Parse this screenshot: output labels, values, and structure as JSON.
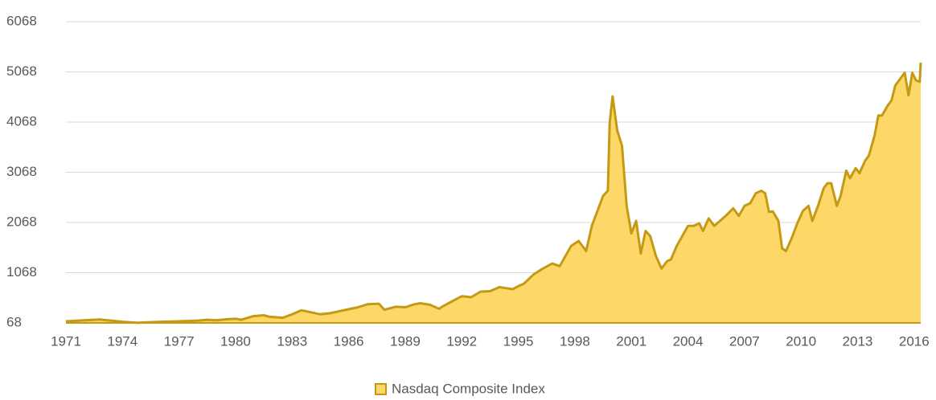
{
  "chart_data": {
    "type": "area",
    "x": [
      1971.0,
      1972.0,
      1972.8,
      1973.5,
      1974.0,
      1974.8,
      1975.0,
      1976.0,
      1977.0,
      1978.0,
      1978.5,
      1979.0,
      1979.5,
      1980.0,
      1980.3,
      1980.9,
      1981.5,
      1981.8,
      1982.5,
      1983.0,
      1983.5,
      1984.0,
      1984.5,
      1985.0,
      1985.5,
      1986.0,
      1986.5,
      1987.0,
      1987.6,
      1987.9,
      1988.5,
      1989.0,
      1989.5,
      1989.8,
      1990.3,
      1990.8,
      1991.0,
      1991.5,
      1992.0,
      1992.5,
      1993.0,
      1993.5,
      1994.0,
      1994.7,
      1995.0,
      1995.3,
      1995.8,
      1996.3,
      1996.8,
      1997.2,
      1997.8,
      1998.2,
      1998.6,
      1998.9,
      1999.2,
      1999.5,
      1999.75,
      1999.85,
      2000.0,
      2000.25,
      2000.5,
      2000.75,
      2001.0,
      2001.25,
      2001.5,
      2001.75,
      2002.0,
      2002.3,
      2002.6,
      2002.9,
      2003.1,
      2003.4,
      2003.7,
      2004.0,
      2004.3,
      2004.6,
      2004.8,
      2005.1,
      2005.4,
      2005.7,
      2006.0,
      2006.4,
      2006.7,
      2007.0,
      2007.3,
      2007.6,
      2007.9,
      2008.1,
      2008.3,
      2008.5,
      2008.8,
      2009.0,
      2009.2,
      2009.5,
      2009.8,
      2010.1,
      2010.4,
      2010.6,
      2010.9,
      2011.2,
      2011.4,
      2011.6,
      2011.9,
      2012.1,
      2012.4,
      2012.6,
      2012.9,
      2013.1,
      2013.4,
      2013.6,
      2013.9,
      2014.1,
      2014.3,
      2014.6,
      2014.8,
      2015.0,
      2015.3,
      2015.5,
      2015.7,
      2015.9,
      2016.1,
      2016.3,
      2016.35
    ],
    "series": [
      {
        "name": "Nasdaq Composite Index",
        "color": "#fdd868",
        "edge_color": "#c49a14",
        "values": [
          100,
          120,
          135,
          110,
          90,
          70,
          75,
          90,
          100,
          115,
          130,
          120,
          140,
          150,
          130,
          200,
          220,
          190,
          170,
          240,
          320,
          280,
          240,
          260,
          300,
          340,
          380,
          440,
          450,
          330,
          390,
          380,
          440,
          460,
          430,
          350,
          400,
          500,
          600,
          580,
          690,
          700,
          780,
          740,
          800,
          850,
          1030,
          1150,
          1250,
          1200,
          1600,
          1700,
          1500,
          2000,
          2300,
          2600,
          2700,
          4050,
          4580,
          3900,
          3600,
          2400,
          1850,
          2100,
          1450,
          1900,
          1800,
          1400,
          1150,
          1300,
          1330,
          1600,
          1800,
          2000,
          2000,
          2050,
          1900,
          2150,
          2000,
          2100,
          2200,
          2350,
          2200,
          2400,
          2450,
          2650,
          2700,
          2650,
          2280,
          2290,
          2100,
          1550,
          1500,
          1750,
          2050,
          2300,
          2400,
          2100,
          2400,
          2750,
          2850,
          2850,
          2400,
          2600,
          3100,
          2950,
          3150,
          3050,
          3300,
          3400,
          3800,
          4200,
          4200,
          4400,
          4500,
          4800,
          4950,
          5050,
          4600,
          5050,
          4900,
          4870,
          5250
        ]
      }
    ],
    "xlim": [
      1971,
      2016.35
    ],
    "xticks": [
      1971,
      1974,
      1977,
      1980,
      1983,
      1986,
      1989,
      1992,
      1995,
      1998,
      2001,
      2004,
      2007,
      2010,
      2013,
      2016
    ],
    "ylim": [
      68,
      6068
    ],
    "yticks": [
      68,
      1068,
      2068,
      3068,
      4068,
      5068,
      6068
    ],
    "grid": true,
    "legend": "bottom"
  }
}
